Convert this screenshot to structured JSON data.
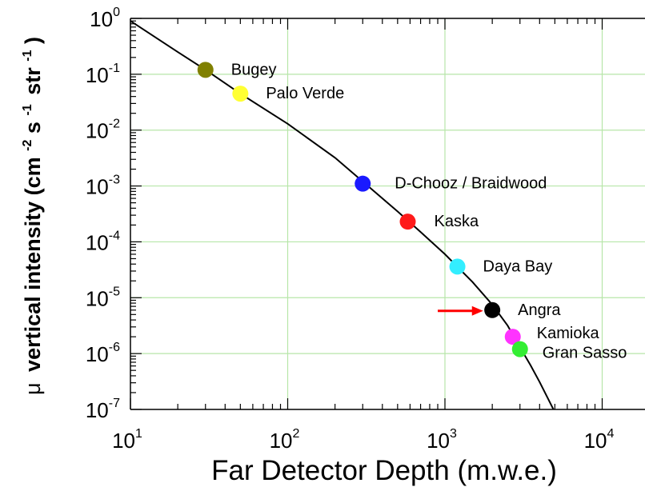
{
  "chart_data": {
    "type": "scatter",
    "title": "",
    "xlabel": "Far Detector Depth (m.w.e.)",
    "ylabel_prefix": "μ",
    "ylabel_main": "vertical intensity (cm",
    "ylabel_sup1": "-2",
    "ylabel_mid1": "s",
    "ylabel_sup2": "-1",
    "ylabel_mid2": "str",
    "ylabel_sup3": "-1",
    "ylabel_end": ")",
    "x_scale": "log",
    "y_scale": "log",
    "xlim": [
      10,
      30000
    ],
    "ylim": [
      1e-07,
      1
    ],
    "grid": true,
    "grid_color": "#b7e6a9",
    "curve_color": "#000000",
    "x_ticks": [
      {
        "base": "10",
        "exp": "1",
        "value": 10
      },
      {
        "base": "10",
        "exp": "2",
        "value": 100
      },
      {
        "base": "10",
        "exp": "3",
        "value": 1000
      },
      {
        "base": "10",
        "exp": "4",
        "value": 10000
      }
    ],
    "y_ticks": [
      {
        "base": "10",
        "exp": "0",
        "value": 1
      },
      {
        "base": "10",
        "exp": "-1",
        "value": 0.1
      },
      {
        "base": "10",
        "exp": "-2",
        "value": 0.01
      },
      {
        "base": "10",
        "exp": "-3",
        "value": 0.001
      },
      {
        "base": "10",
        "exp": "-4",
        "value": 0.0001
      },
      {
        "base": "10",
        "exp": "-5",
        "value": 1e-05
      },
      {
        "base": "10",
        "exp": "-6",
        "value": 1e-06
      },
      {
        "base": "10",
        "exp": "-7",
        "value": 1e-07
      }
    ],
    "curve": {
      "x": [
        10,
        20,
        30,
        50,
        100,
        200,
        300,
        500,
        700,
        1000,
        1500,
        2000,
        2500,
        3000,
        3500,
        4000,
        4500,
        4900
      ],
      "y": [
        0.9,
        0.25,
        0.12,
        0.045,
        0.013,
        0.0032,
        0.0012,
        0.00035,
        0.00015,
        6e-05,
        1.9e-05,
        7.5e-06,
        3.2e-06,
        1.3e-06,
        6.2e-07,
        3.1e-07,
        1.6e-07,
        1e-07
      ]
    },
    "points": [
      {
        "name": "Bugey",
        "x": 30,
        "y": 0.12,
        "color": "#808000"
      },
      {
        "name": "Palo Verde",
        "x": 50,
        "y": 0.045,
        "color": "#ffff33"
      },
      {
        "name": "D-Chooz / Braidwood",
        "x": 300,
        "y": 0.0011,
        "color": "#1a1aff"
      },
      {
        "name": "Kaska",
        "x": 580,
        "y": 0.00023,
        "color": "#ff1a1a"
      },
      {
        "name": "Daya Bay",
        "x": 1200,
        "y": 3.6e-05,
        "color": "#33eeff"
      },
      {
        "name": "Angra",
        "x": 2000,
        "y": 6e-06,
        "color": "#000000"
      },
      {
        "name": "Kamioka",
        "x": 2700,
        "y": 2e-06,
        "color": "#ff33ff"
      },
      {
        "name": "Gran Sasso",
        "x": 3000,
        "y": 1.2e-06,
        "color": "#33ee33"
      }
    ],
    "annotation": {
      "type": "arrow",
      "color": "#ff0000",
      "x_from": 900,
      "x_to": 1750,
      "y": 6.2e-06
    }
  }
}
